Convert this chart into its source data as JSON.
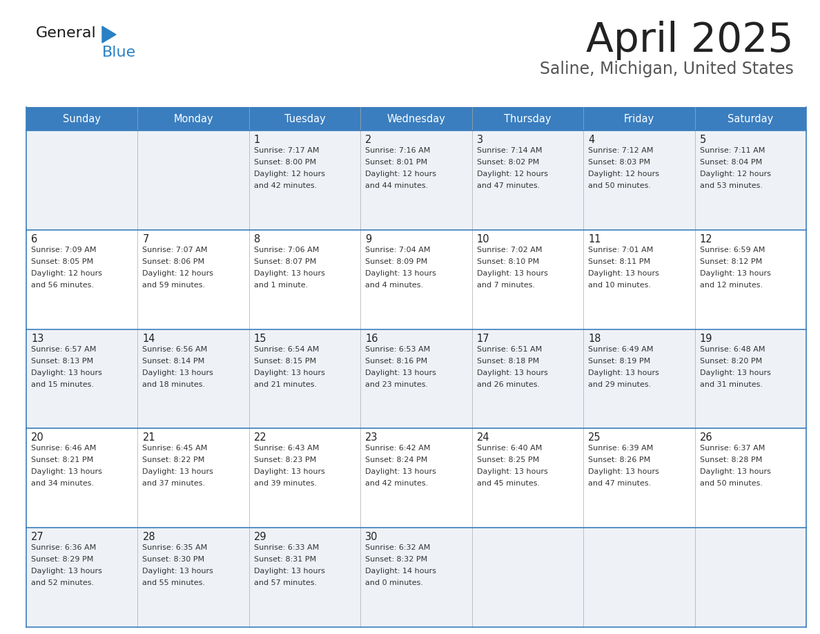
{
  "title": "April 2025",
  "subtitle": "Saline, Michigan, United States",
  "header_color": "#3a7ebf",
  "header_text_color": "#ffffff",
  "row_bg": [
    "#eef2f7",
    "#ffffff",
    "#eef2f7",
    "#ffffff",
    "#eef2f7"
  ],
  "day_headers": [
    "Sunday",
    "Monday",
    "Tuesday",
    "Wednesday",
    "Thursday",
    "Friday",
    "Saturday"
  ],
  "title_color": "#222222",
  "subtitle_color": "#555555",
  "border_color": "#3a7ebf",
  "cell_text_color": "#333333",
  "day_num_color": "#222222",
  "weeks": [
    [
      {
        "date": "",
        "sunrise": "",
        "sunset": "",
        "daylight": ""
      },
      {
        "date": "",
        "sunrise": "",
        "sunset": "",
        "daylight": ""
      },
      {
        "date": "1",
        "sunrise": "7:17 AM",
        "sunset": "8:00 PM",
        "daylight": "12 hours\nand 42 minutes."
      },
      {
        "date": "2",
        "sunrise": "7:16 AM",
        "sunset": "8:01 PM",
        "daylight": "12 hours\nand 44 minutes."
      },
      {
        "date": "3",
        "sunrise": "7:14 AM",
        "sunset": "8:02 PM",
        "daylight": "12 hours\nand 47 minutes."
      },
      {
        "date": "4",
        "sunrise": "7:12 AM",
        "sunset": "8:03 PM",
        "daylight": "12 hours\nand 50 minutes."
      },
      {
        "date": "5",
        "sunrise": "7:11 AM",
        "sunset": "8:04 PM",
        "daylight": "12 hours\nand 53 minutes."
      }
    ],
    [
      {
        "date": "6",
        "sunrise": "7:09 AM",
        "sunset": "8:05 PM",
        "daylight": "12 hours\nand 56 minutes."
      },
      {
        "date": "7",
        "sunrise": "7:07 AM",
        "sunset": "8:06 PM",
        "daylight": "12 hours\nand 59 minutes."
      },
      {
        "date": "8",
        "sunrise": "7:06 AM",
        "sunset": "8:07 PM",
        "daylight": "13 hours\nand 1 minute."
      },
      {
        "date": "9",
        "sunrise": "7:04 AM",
        "sunset": "8:09 PM",
        "daylight": "13 hours\nand 4 minutes."
      },
      {
        "date": "10",
        "sunrise": "7:02 AM",
        "sunset": "8:10 PM",
        "daylight": "13 hours\nand 7 minutes."
      },
      {
        "date": "11",
        "sunrise": "7:01 AM",
        "sunset": "8:11 PM",
        "daylight": "13 hours\nand 10 minutes."
      },
      {
        "date": "12",
        "sunrise": "6:59 AM",
        "sunset": "8:12 PM",
        "daylight": "13 hours\nand 12 minutes."
      }
    ],
    [
      {
        "date": "13",
        "sunrise": "6:57 AM",
        "sunset": "8:13 PM",
        "daylight": "13 hours\nand 15 minutes."
      },
      {
        "date": "14",
        "sunrise": "6:56 AM",
        "sunset": "8:14 PM",
        "daylight": "13 hours\nand 18 minutes."
      },
      {
        "date": "15",
        "sunrise": "6:54 AM",
        "sunset": "8:15 PM",
        "daylight": "13 hours\nand 21 minutes."
      },
      {
        "date": "16",
        "sunrise": "6:53 AM",
        "sunset": "8:16 PM",
        "daylight": "13 hours\nand 23 minutes."
      },
      {
        "date": "17",
        "sunrise": "6:51 AM",
        "sunset": "8:18 PM",
        "daylight": "13 hours\nand 26 minutes."
      },
      {
        "date": "18",
        "sunrise": "6:49 AM",
        "sunset": "8:19 PM",
        "daylight": "13 hours\nand 29 minutes."
      },
      {
        "date": "19",
        "sunrise": "6:48 AM",
        "sunset": "8:20 PM",
        "daylight": "13 hours\nand 31 minutes."
      }
    ],
    [
      {
        "date": "20",
        "sunrise": "6:46 AM",
        "sunset": "8:21 PM",
        "daylight": "13 hours\nand 34 minutes."
      },
      {
        "date": "21",
        "sunrise": "6:45 AM",
        "sunset": "8:22 PM",
        "daylight": "13 hours\nand 37 minutes."
      },
      {
        "date": "22",
        "sunrise": "6:43 AM",
        "sunset": "8:23 PM",
        "daylight": "13 hours\nand 39 minutes."
      },
      {
        "date": "23",
        "sunrise": "6:42 AM",
        "sunset": "8:24 PM",
        "daylight": "13 hours\nand 42 minutes."
      },
      {
        "date": "24",
        "sunrise": "6:40 AM",
        "sunset": "8:25 PM",
        "daylight": "13 hours\nand 45 minutes."
      },
      {
        "date": "25",
        "sunrise": "6:39 AM",
        "sunset": "8:26 PM",
        "daylight": "13 hours\nand 47 minutes."
      },
      {
        "date": "26",
        "sunrise": "6:37 AM",
        "sunset": "8:28 PM",
        "daylight": "13 hours\nand 50 minutes."
      }
    ],
    [
      {
        "date": "27",
        "sunrise": "6:36 AM",
        "sunset": "8:29 PM",
        "daylight": "13 hours\nand 52 minutes."
      },
      {
        "date": "28",
        "sunrise": "6:35 AM",
        "sunset": "8:30 PM",
        "daylight": "13 hours\nand 55 minutes."
      },
      {
        "date": "29",
        "sunrise": "6:33 AM",
        "sunset": "8:31 PM",
        "daylight": "13 hours\nand 57 minutes."
      },
      {
        "date": "30",
        "sunrise": "6:32 AM",
        "sunset": "8:32 PM",
        "daylight": "14 hours\nand 0 minutes."
      },
      {
        "date": "",
        "sunrise": "",
        "sunset": "",
        "daylight": ""
      },
      {
        "date": "",
        "sunrise": "",
        "sunset": "",
        "daylight": ""
      },
      {
        "date": "",
        "sunrise": "",
        "sunset": "",
        "daylight": ""
      }
    ]
  ],
  "logo_color_general": "#1a1a1a",
  "logo_color_blue": "#2980c4"
}
